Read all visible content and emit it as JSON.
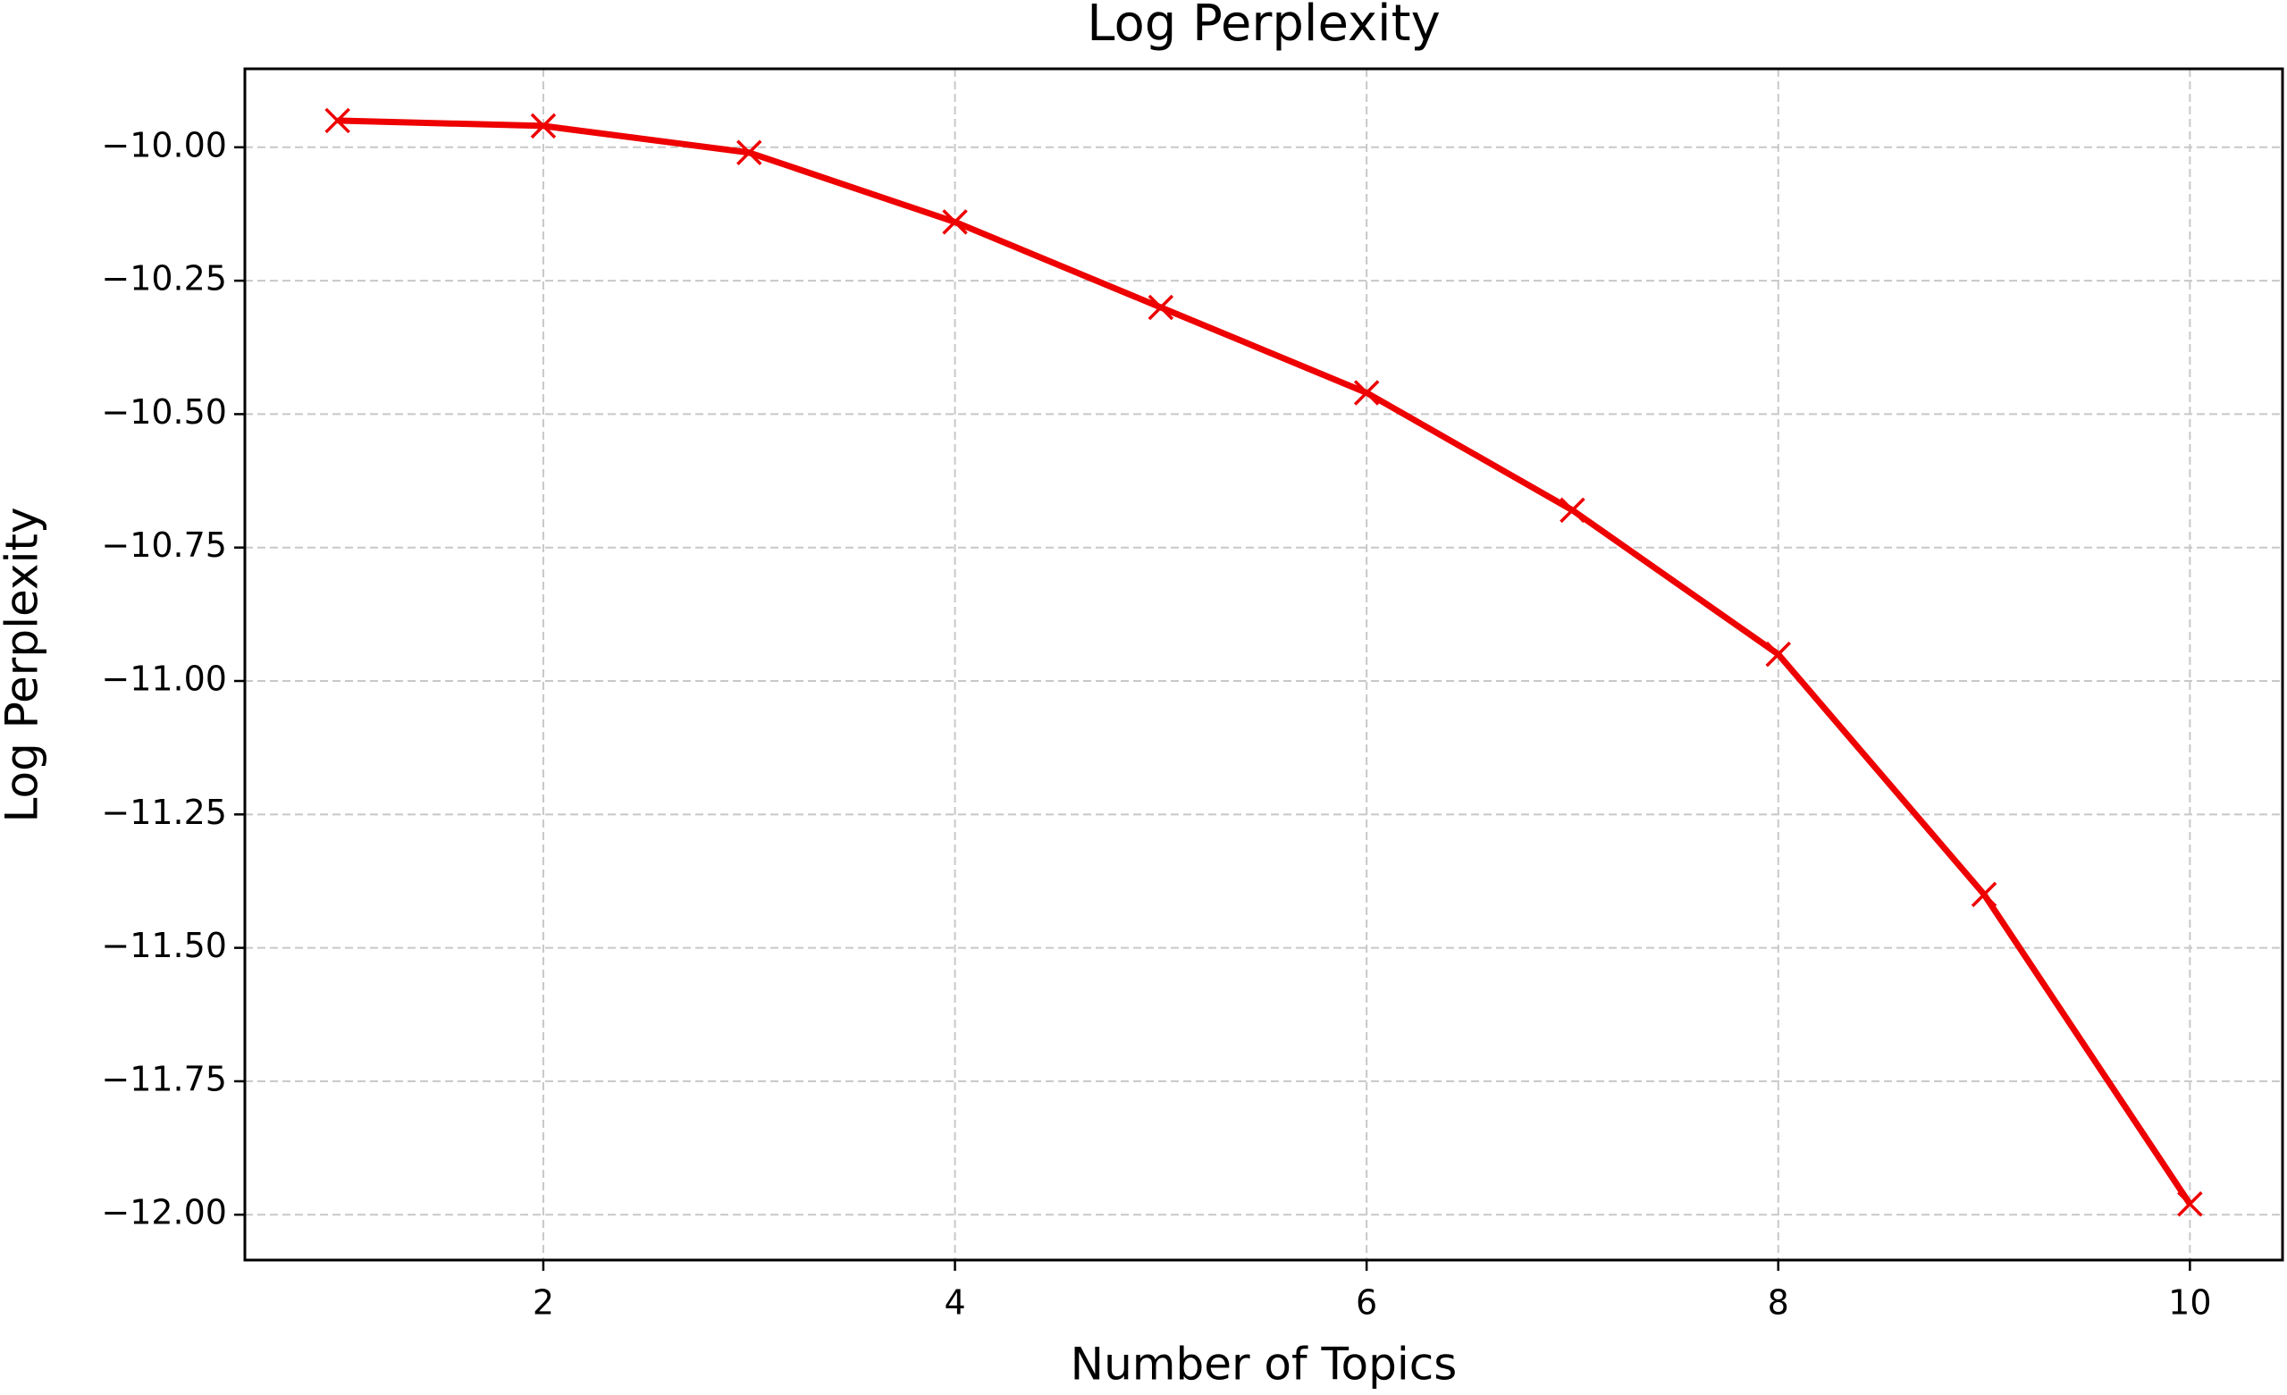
{
  "chart_data": {
    "type": "line",
    "title": "Log Perplexity",
    "x_label": "Number of Topics",
    "y_label": "Log Perplexity",
    "x": [
      1,
      2,
      3,
      4,
      5,
      6,
      7,
      8,
      9,
      10
    ],
    "values": [
      -9.95,
      -9.96,
      -10.01,
      -10.14,
      -10.3,
      -10.46,
      -10.68,
      -10.95,
      -11.4,
      -11.98
    ],
    "color": "#ee0000",
    "marker": "x",
    "xlim": [
      0.55,
      10.45
    ],
    "ylim": [
      -12.085,
      -9.853
    ],
    "xticks": [
      2,
      4,
      6,
      8,
      10
    ],
    "yticks": [
      {
        "value": -10,
        "label": "−10.00"
      },
      {
        "value": -10.25,
        "label": "−10.25"
      },
      {
        "value": -10.5,
        "label": "−10.50"
      },
      {
        "value": -10.75,
        "label": "−10.75"
      },
      {
        "value": -11,
        "label": "−11.00"
      },
      {
        "value": -11.25,
        "label": "−11.25"
      },
      {
        "value": -11.5,
        "label": "−11.50"
      },
      {
        "value": -11.75,
        "label": "−11.75"
      },
      {
        "value": -12,
        "label": "−12.00"
      }
    ],
    "grid": true
  }
}
